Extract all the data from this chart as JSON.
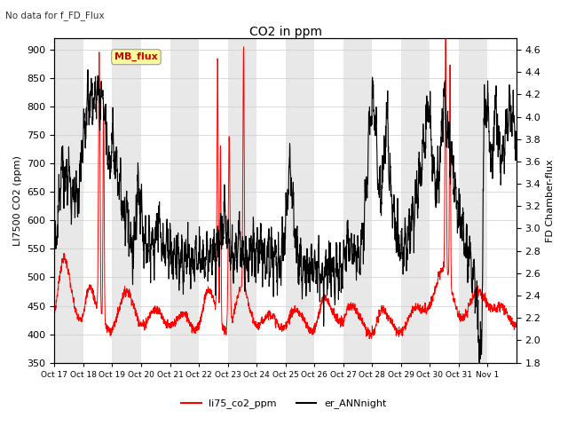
{
  "title": "CO2 in ppm",
  "subtitle": "No data for f_FD_Flux",
  "ylabel_left": "LI7500 CO2 (ppm)",
  "ylabel_right": "FD Chamber-flux",
  "ylim_left": [
    350,
    920
  ],
  "ylim_right": [
    1.8,
    4.7
  ],
  "yticks_left": [
    350,
    400,
    450,
    500,
    550,
    600,
    650,
    700,
    750,
    800,
    850,
    900
  ],
  "yticks_right": [
    1.8,
    2.0,
    2.2,
    2.4,
    2.6,
    2.8,
    3.0,
    3.2,
    3.4,
    3.6,
    3.8,
    4.0,
    4.2,
    4.4,
    4.6
  ],
  "xtick_labels": [
    "Oct 17",
    "Oct 18",
    "Oct 19",
    "Oct 20",
    "Oct 21",
    "Oct 22",
    "Oct 23",
    "Oct 24",
    "Oct 25",
    "Oct 26",
    "Oct 27",
    "Oct 28",
    "Oct 29",
    "Oct 30",
    "Oct 31",
    "Nov 1"
  ],
  "legend_entries": [
    "li75_co2_ppm",
    "er_ANNnight"
  ],
  "legend_colors": [
    "#ff0000",
    "#000000"
  ],
  "mb_flux_label": "MB_flux",
  "mb_flux_color": "#cc0000",
  "mb_flux_bg": "#ffff99",
  "plot_bg": "#ffffff",
  "band_color": "#e8e8e8"
}
